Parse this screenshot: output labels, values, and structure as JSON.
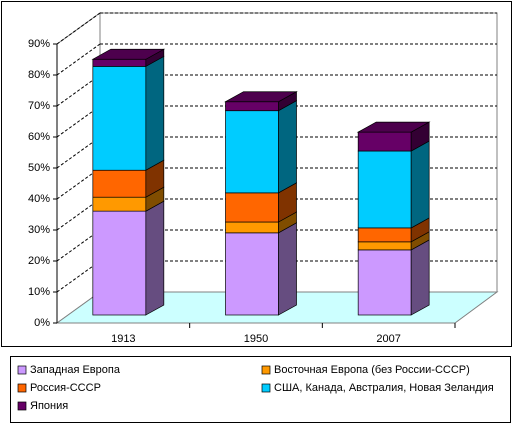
{
  "chart_data": {
    "type": "bar3d_stacked",
    "categories": [
      "1913",
      "1950",
      "2007"
    ],
    "series": [
      {
        "name": "Западная Европа",
        "color": "#cc99ff",
        "values": [
          33.5,
          26.5,
          21
        ]
      },
      {
        "name": "Восточная Европа (без России-СССР)",
        "color": "#ff9900",
        "values": [
          4.5,
          3.5,
          2.6
        ]
      },
      {
        "name": "Россия-СССР",
        "color": "#ff6600",
        "values": [
          8.7,
          9.4,
          4.5
        ]
      },
      {
        "name": "США, Канада, Австралия, Новая Зеландия",
        "color": "#00ccff",
        "values": [
          33.5,
          26.5,
          24.8
        ]
      },
      {
        "name": "Япония",
        "color": "#660066",
        "values": [
          2.3,
          2.9,
          6.1
        ]
      }
    ],
    "ylim": [
      0,
      90
    ],
    "yticks": [
      {
        "value": 0,
        "label": "0%"
      },
      {
        "value": 10,
        "label": "10%"
      },
      {
        "value": 20,
        "label": "20%"
      },
      {
        "value": 30,
        "label": "30%"
      },
      {
        "value": 40,
        "label": "40%"
      },
      {
        "value": 50,
        "label": "50%"
      },
      {
        "value": 60,
        "label": "60%"
      },
      {
        "value": 70,
        "label": "70%"
      },
      {
        "value": 80,
        "label": "80%"
      },
      {
        "value": 90,
        "label": "90%"
      }
    ],
    "grid": true
  }
}
